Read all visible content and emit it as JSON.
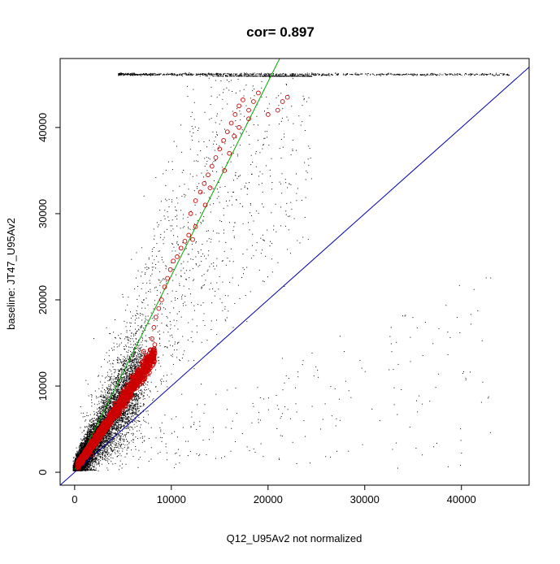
{
  "chart_data": {
    "type": "scatter",
    "title": "cor= 0.897",
    "xlabel": "Q12_U95Av2 not normalized",
    "ylabel": "baseline: JT47_U95Av2",
    "xlim": [
      -1500,
      47000
    ],
    "ylim": [
      -1500,
      48000
    ],
    "x_ticks": [
      0,
      10000,
      20000,
      30000,
      40000
    ],
    "y_ticks": [
      0,
      10000,
      20000,
      30000,
      40000
    ],
    "x_tick_labels": [
      "0",
      "10000",
      "20000",
      "30000",
      "40000"
    ],
    "y_tick_labels": [
      "0",
      "10000",
      "20000",
      "30000",
      "40000"
    ],
    "grid": false,
    "legend": "none",
    "colors": {
      "points": "#000000",
      "highlight": "#ff0000",
      "highlight_dark": "#b00000",
      "fit_line": "#00aa00",
      "identity_line": "#0000aa"
    },
    "series": [
      {
        "marker": "dot",
        "color": "#000000",
        "description_points": "dense cloud of probe intensities concentrated near the origin, fanning out along the fit line, plus a saturation band at y≈46200",
        "core_points": [
          [
            300,
            500
          ],
          [
            800,
            1200
          ],
          [
            1500,
            2200
          ],
          [
            2200,
            3400
          ],
          [
            3000,
            4600
          ],
          [
            3800,
            6000
          ],
          [
            4600,
            7400
          ],
          [
            5500,
            9200
          ],
          [
            6500,
            11000
          ],
          [
            2000,
            800
          ],
          [
            3500,
            1500
          ],
          [
            4500,
            2000
          ],
          [
            1000,
            3000
          ],
          [
            1500,
            5000
          ],
          [
            2500,
            8000
          ],
          [
            3500,
            10000
          ],
          [
            5000,
            5500
          ],
          [
            6000,
            8000
          ]
        ],
        "saturation_y": 46200,
        "saturation_x_range": [
          4500,
          45000
        ]
      },
      {
        "marker": "open-circle",
        "color": "#cc0000",
        "description_points": "highlighted probes following the regression curve",
        "points": [
          [
            400,
            400
          ],
          [
            800,
            1000
          ],
          [
            1200,
            1700
          ],
          [
            1600,
            2300
          ],
          [
            2000,
            3000
          ],
          [
            2500,
            3800
          ],
          [
            3000,
            4600
          ],
          [
            3500,
            5400
          ],
          [
            4000,
            6200
          ],
          [
            4500,
            7000
          ],
          [
            5000,
            7800
          ],
          [
            5500,
            8700
          ],
          [
            6000,
            9600
          ],
          [
            6500,
            10600
          ],
          [
            7000,
            11700
          ],
          [
            7500,
            13000
          ],
          [
            7800,
            14200
          ],
          [
            8000,
            15500
          ],
          [
            8200,
            16800
          ],
          [
            8400,
            18000
          ],
          [
            8700,
            19000
          ],
          [
            9000,
            20000
          ],
          [
            9300,
            21500
          ],
          [
            9600,
            22500
          ],
          [
            9900,
            23500
          ],
          [
            10200,
            24500
          ],
          [
            10600,
            25000
          ],
          [
            11000,
            26000
          ],
          [
            11400,
            26800
          ],
          [
            11800,
            27500
          ],
          [
            12200,
            27000
          ],
          [
            12500,
            28500
          ],
          [
            12000,
            30000
          ],
          [
            12500,
            31500
          ],
          [
            13000,
            32500
          ],
          [
            13400,
            33500
          ],
          [
            13800,
            34500
          ],
          [
            14200,
            35500
          ],
          [
            14600,
            36500
          ],
          [
            15000,
            37500
          ],
          [
            15400,
            38500
          ],
          [
            15800,
            39500
          ],
          [
            16200,
            40500
          ],
          [
            16600,
            41500
          ],
          [
            17000,
            42500
          ],
          [
            17400,
            43200
          ],
          [
            18000,
            42000
          ],
          [
            18500,
            43000
          ],
          [
            19000,
            44000
          ],
          [
            20000,
            41500
          ],
          [
            21000,
            42000
          ],
          [
            21500,
            43000
          ],
          [
            22000,
            43500
          ],
          [
            13500,
            31000
          ],
          [
            14000,
            33000
          ],
          [
            15500,
            35000
          ],
          [
            16000,
            37000
          ],
          [
            16500,
            39000
          ],
          [
            17000,
            40000
          ],
          [
            18000,
            41000
          ]
        ]
      }
    ],
    "lines": [
      {
        "name": "regression fit",
        "color": "#00aa00",
        "from": [
          0,
          300
        ],
        "to": [
          21200,
          48000
        ]
      },
      {
        "name": "identity y = x",
        "color": "#0000aa",
        "from": [
          -1500,
          -1500
        ],
        "to": [
          47000,
          47000
        ]
      }
    ]
  }
}
